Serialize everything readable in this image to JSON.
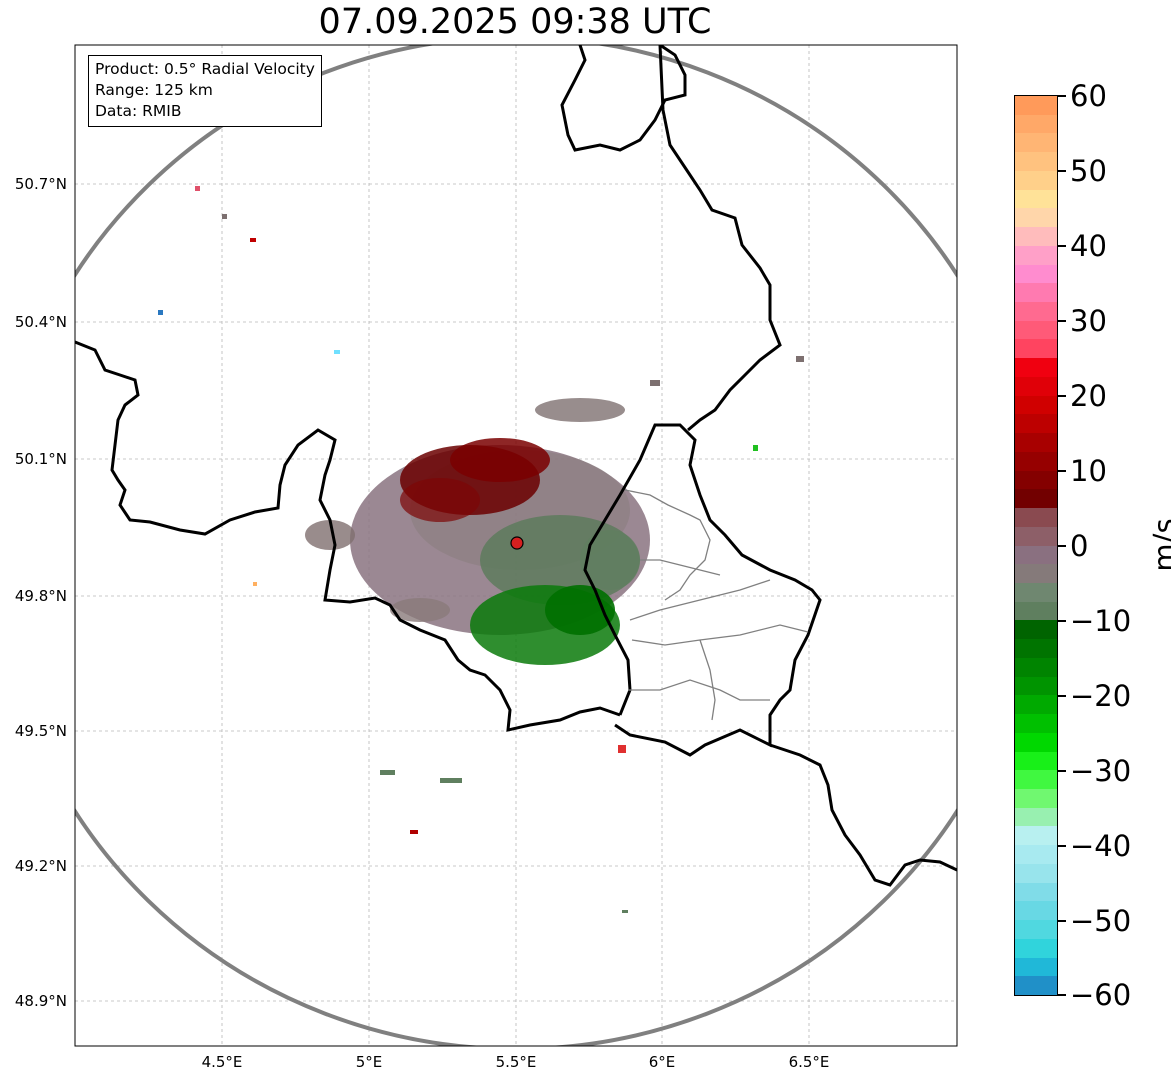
{
  "title": "07.09.2025 09:38 UTC",
  "info": {
    "product": "Product: 0.5° Radial Velocity",
    "range": "Range: 125 km",
    "data": "Data: RMIB"
  },
  "axes": {
    "x_ticks": [
      "4.5°E",
      "5°E",
      "5.5°E",
      "6°E",
      "6.5°E"
    ],
    "y_ticks": [
      "50.7°N",
      "50.4°N",
      "50.1°N",
      "49.8°N",
      "49.5°N",
      "49.2°N",
      "48.9°N"
    ]
  },
  "colorbar": {
    "unit": "m/s",
    "ticks": [
      "60",
      "50",
      "40",
      "30",
      "20",
      "10",
      "0",
      "−10",
      "−20",
      "−30",
      "−40",
      "−50",
      "−60"
    ],
    "range": [
      -60,
      60
    ]
  },
  "map_colors": {
    "coastline": "#000000",
    "admin_border": "#808080",
    "range_ring": "#808080",
    "radar_site": "#d62020"
  }
}
